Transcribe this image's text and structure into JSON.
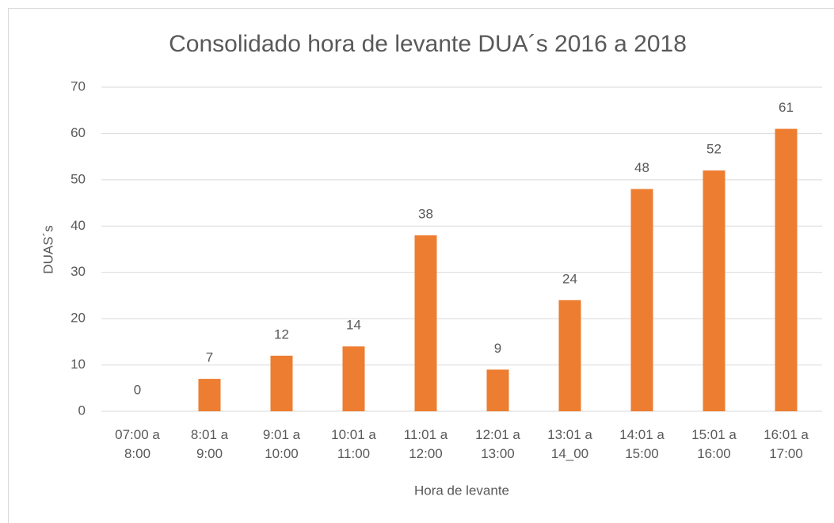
{
  "chart_data": {
    "type": "bar",
    "title": "Consolidado hora de levante DUA´s 2016 a 2018",
    "xlabel": "Hora de levante",
    "ylabel": "DUAS´s",
    "categories": [
      "07:00 a 8:00",
      "8:01 a 9:00",
      "9:01 a 10:00",
      "10:01 a 11:00",
      "11:01 a 12:00",
      "12:01 a 13:00",
      "13:01 a 14_00",
      "14:01 a 15:00",
      "15:01 a 16:00",
      "16:01 a 17:00"
    ],
    "values": [
      0,
      7,
      12,
      14,
      38,
      9,
      24,
      48,
      52,
      61
    ],
    "color": "#ed7d31",
    "ylim": [
      0,
      70
    ],
    "yticks": [
      0,
      10,
      20,
      30,
      40,
      50,
      60,
      70
    ],
    "grid": true
  }
}
